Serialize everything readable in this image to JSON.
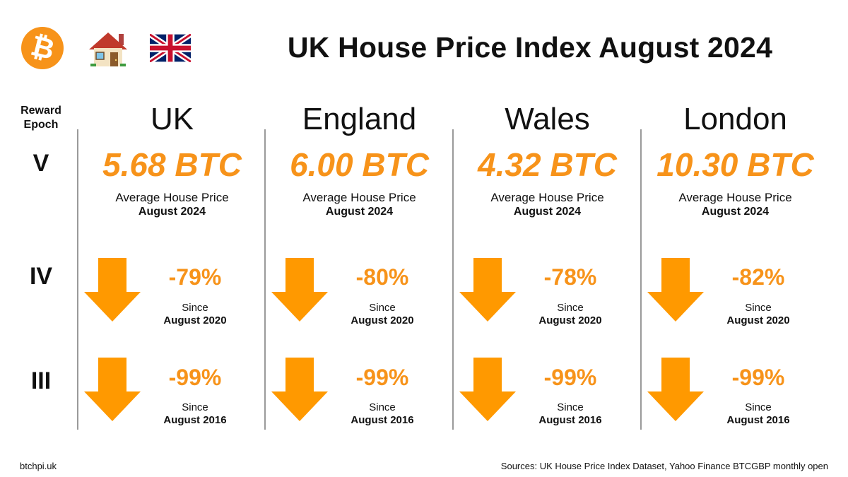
{
  "header": {
    "title": "UK House Price Index August 2024",
    "logo_symbol": "₿",
    "icons": [
      "bitcoin-logo-icon",
      "house-icon",
      "uk-flag-icon"
    ]
  },
  "epoch": {
    "heading_line1": "Reward",
    "heading_line2": "Epoch",
    "rows": [
      "V",
      "IV",
      "III"
    ]
  },
  "labels": {
    "avg_label": "Average House Price",
    "avg_date": "August 2024",
    "since": "Since",
    "since_2020": "August 2020",
    "since_2016": "August 2016"
  },
  "regions": [
    {
      "name": "UK",
      "btc": "5.68 BTC",
      "change_2020": "-79%",
      "change_2016": "-99%"
    },
    {
      "name": "England",
      "btc": "6.00 BTC",
      "change_2020": "-80%",
      "change_2016": "-99%"
    },
    {
      "name": "Wales",
      "btc": "4.32 BTC",
      "change_2020": "-78%",
      "change_2016": "-99%"
    },
    {
      "name": "London",
      "btc": "10.30 BTC",
      "change_2020": "-82%",
      "change_2016": "-99%"
    }
  ],
  "colors": {
    "accent": "#f7931a",
    "arrow": "#ff9900",
    "separator": "#9a9a9a"
  },
  "footer": {
    "site": "btchpi.uk",
    "sources": "Sources: UK House Price Index Dataset, Yahoo Finance BTCGBP monthly open"
  }
}
